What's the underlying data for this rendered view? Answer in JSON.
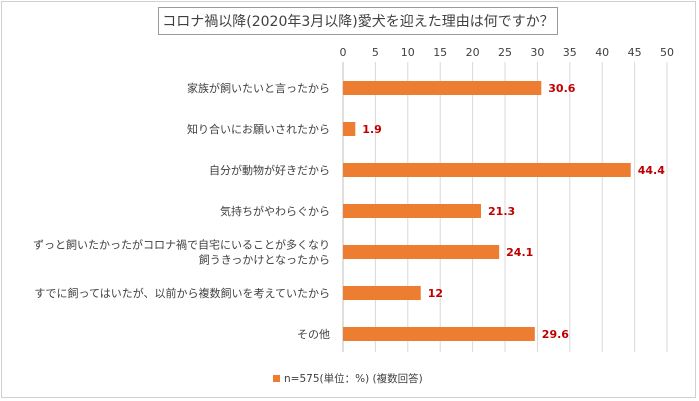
{
  "chart_data": {
    "type": "bar",
    "orientation": "horizontal",
    "title": "コロナ禍以降(2020年3月以降)愛犬を迎えた理由は何ですか？",
    "categories": [
      [
        "家族が飼いたいと言ったから"
      ],
      [
        "知り合いにお願いされたから"
      ],
      [
        "自分が動物が好きだから"
      ],
      [
        "気持ちがやわらぐから"
      ],
      [
        "ずっと飼いたかったがコロナ禍で自宅にいることが多くなり",
        "飼うきっかけとなったから"
      ],
      [
        "すでに飼ってはいたが、以前から複数飼いを考えていたから"
      ],
      [
        "その他"
      ]
    ],
    "series": [
      {
        "name": "n=575(単位：%) (複数回答)",
        "values": [
          30.6,
          1.9,
          44.4,
          21.3,
          24.1,
          12,
          29.6
        ],
        "value_labels": [
          "30.6",
          "1.9",
          "44.4",
          "21.3",
          "24.1",
          "12",
          "29.6"
        ]
      }
    ],
    "xlim": [
      0,
      50
    ],
    "xticks": [
      0,
      5,
      10,
      15,
      20,
      25,
      30,
      35,
      40,
      45,
      50
    ],
    "grid": true,
    "axis_position": "top",
    "legend_position": "bottom",
    "colors": {
      "bar": "#ED7D31",
      "value_label": "#C00000",
      "grid": "#d9d9d9",
      "text": "#404040"
    }
  }
}
